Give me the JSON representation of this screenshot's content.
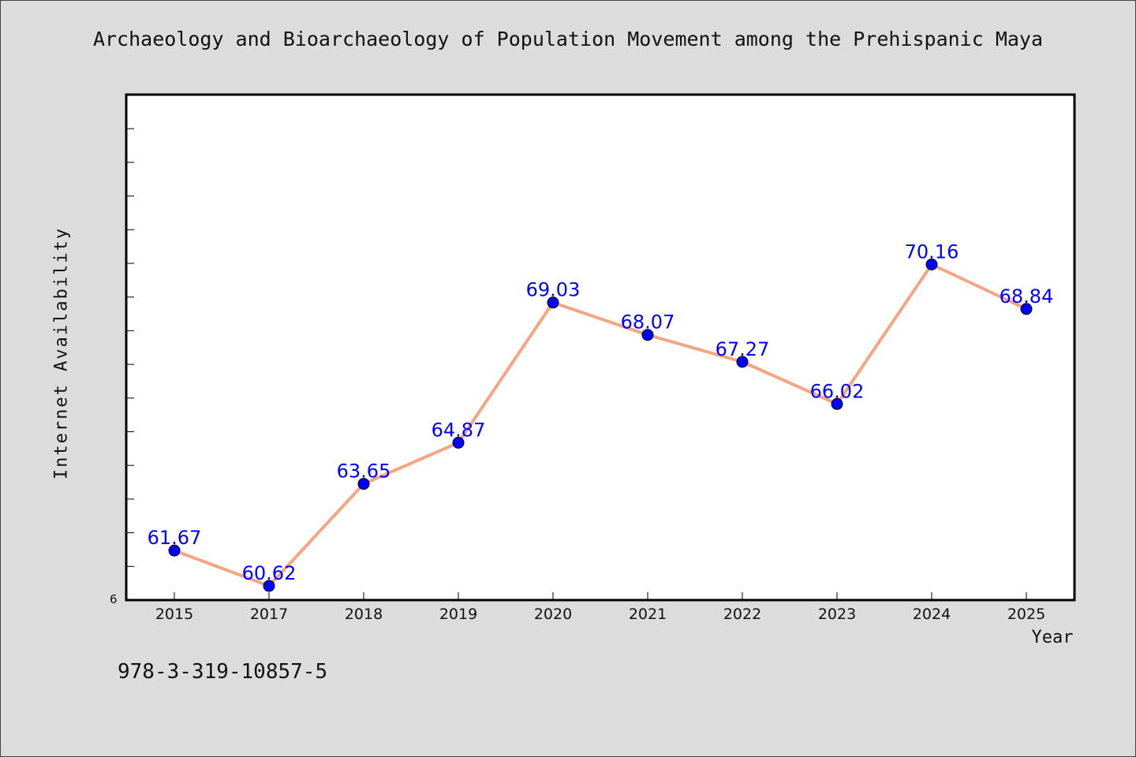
{
  "chart_data": {
    "type": "line",
    "title": "Archaeology and Bioarchaeology of Population Movement among the Prehispanic Maya",
    "xlabel": "Year",
    "ylabel": "Internet Availability",
    "categories": [
      "2015",
      "2017",
      "2018",
      "2019",
      "2020",
      "2021",
      "2022",
      "2023",
      "2024",
      "2025"
    ],
    "values": [
      61.67,
      60.62,
      63.65,
      64.87,
      69.03,
      68.07,
      67.27,
      66.02,
      70.16,
      68.84
    ],
    "value_labels": [
      "61.67",
      "60.62",
      "63.65",
      "64.87",
      "69.03",
      "68.07",
      "67.27",
      "66.02",
      "70.16",
      "68.84"
    ],
    "y_min_label": "6",
    "ylim": [
      60.2,
      75.2
    ],
    "grid": false,
    "legend": "none",
    "colors": {
      "line": "#f4a582",
      "marker": "#0000ff",
      "label": "#0000ff",
      "background": "#dcdcdc",
      "plot_bg": "#ffffff"
    }
  },
  "footer": {
    "isbn": "978-3-319-10857-5"
  }
}
